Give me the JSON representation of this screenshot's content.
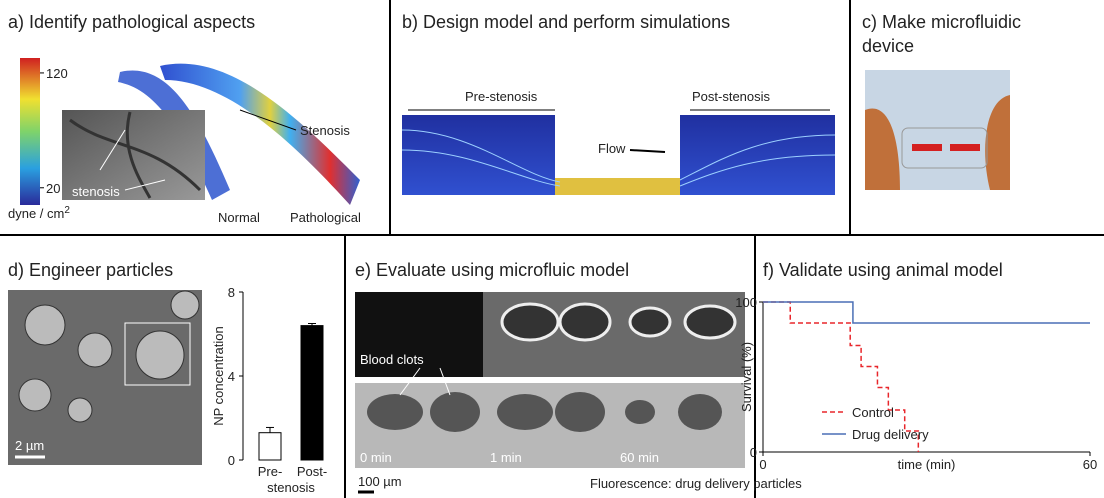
{
  "panels": {
    "a": {
      "title": "a) Identify pathological aspects",
      "colorbar": {
        "clim": [
          5,
          133
        ],
        "ticks": [
          120,
          20
        ],
        "unit": "dyne / cm",
        "unit_exponent": "2"
      },
      "inset_label": "stenosis",
      "vessel_label": "Stenosis",
      "normal": "Normal",
      "pathological": "Pathological"
    },
    "b": {
      "title": "b) Design model and perform simulations",
      "pre": "Pre-stenosis",
      "flow": "Flow",
      "post": "Post-stenosis"
    },
    "c": {
      "title_line1": "c) Make microfluidic",
      "title_line2": "device"
    },
    "d": {
      "title": "d) Engineer particles",
      "scale_bar": "2 µm",
      "chart": {
        "type": "bar",
        "categories": [
          "Pre-",
          "Post-"
        ],
        "x_label": "stenosis",
        "y_label": "NP concentration",
        "values": [
          1.3,
          6.4
        ],
        "errors": [
          0.25,
          0.1
        ],
        "colors": [
          "#ffffff",
          "#000000"
        ],
        "ylim": [
          0,
          8
        ],
        "yticks": [
          0,
          4,
          8
        ]
      }
    },
    "e": {
      "title": "e) Evaluate using microfluic model",
      "clots": "Blood clots",
      "times": [
        "0 min",
        "1 min",
        "60 min"
      ],
      "scale_bar": "100 µm",
      "caption": "Fluorescence: drug delivery particles"
    },
    "f": {
      "title": "f) Validate using animal model",
      "chart": {
        "type": "line",
        "x_label": "time (min)",
        "y_label": "Survival (%)",
        "xlim": [
          0,
          60
        ],
        "xticks": [
          0,
          60
        ],
        "ylim": [
          0,
          100
        ],
        "yticks": [
          0,
          100
        ],
        "series": [
          {
            "name": "Control",
            "color": "#e8262b",
            "dashed": true,
            "x": [
              0,
              5,
              5,
              16,
              16,
              18,
              18,
              21,
              21,
              23,
              23,
              26,
              26,
              28.5,
              28.5
            ],
            "values": [
              100,
              100,
              86,
              86,
              71,
              71,
              57,
              57,
              43,
              43,
              28,
              28,
              14,
              14,
              0
            ]
          },
          {
            "name": "Drug delivery",
            "color": "#4a6fb5",
            "dashed": false,
            "x": [
              0,
              16.5,
              16.5,
              60
            ],
            "values": [
              100,
              100,
              86,
              86
            ]
          }
        ]
      }
    }
  }
}
